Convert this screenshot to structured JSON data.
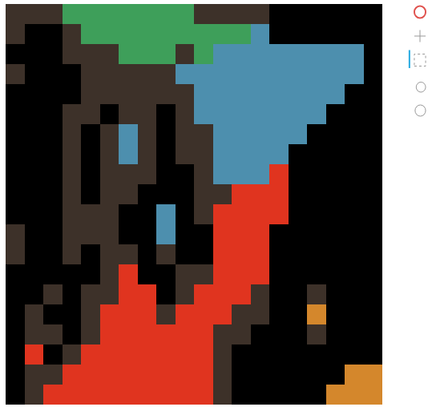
{
  "chart_data": {
    "type": "heatmap",
    "colors": [
      "#000000",
      "#e0341f",
      "#4d8fae",
      "#3e9f5a",
      "#d4872c",
      "#3d3129"
    ],
    "tick_labels": false,
    "grid": false,
    "cells": [
      [
        5,
        5,
        5,
        3,
        3,
        3,
        3,
        3,
        3,
        3,
        5,
        5,
        5,
        5,
        0,
        0,
        0,
        0,
        0,
        0
      ],
      [
        5,
        0,
        0,
        5,
        3,
        3,
        3,
        3,
        3,
        3,
        3,
        3,
        3,
        2,
        0,
        0,
        0,
        0,
        0,
        0
      ],
      [
        0,
        0,
        0,
        5,
        5,
        5,
        3,
        3,
        3,
        5,
        3,
        2,
        2,
        2,
        2,
        2,
        2,
        2,
        2,
        0
      ],
      [
        5,
        0,
        0,
        0,
        5,
        5,
        5,
        5,
        5,
        2,
        2,
        2,
        2,
        2,
        2,
        2,
        2,
        2,
        2,
        0
      ],
      [
        0,
        0,
        0,
        0,
        5,
        5,
        5,
        5,
        5,
        5,
        2,
        2,
        2,
        2,
        2,
        2,
        2,
        2,
        0,
        0
      ],
      [
        0,
        0,
        0,
        5,
        5,
        0,
        5,
        5,
        0,
        5,
        2,
        2,
        2,
        2,
        2,
        2,
        2,
        0,
        0,
        0
      ],
      [
        0,
        0,
        0,
        5,
        0,
        5,
        2,
        5,
        0,
        5,
        5,
        2,
        2,
        2,
        2,
        2,
        0,
        0,
        0,
        0
      ],
      [
        0,
        0,
        0,
        5,
        0,
        5,
        2,
        5,
        0,
        5,
        5,
        2,
        2,
        2,
        2,
        0,
        0,
        0,
        0,
        0
      ],
      [
        0,
        0,
        0,
        5,
        0,
        5,
        5,
        5,
        0,
        0,
        5,
        2,
        2,
        2,
        1,
        0,
        0,
        0,
        0,
        0
      ],
      [
        0,
        0,
        0,
        5,
        0,
        5,
        5,
        0,
        0,
        0,
        5,
        5,
        1,
        1,
        1,
        0,
        0,
        0,
        0,
        0
      ],
      [
        0,
        0,
        0,
        5,
        5,
        5,
        0,
        0,
        2,
        0,
        5,
        1,
        1,
        1,
        1,
        0,
        0,
        0,
        0,
        0
      ],
      [
        5,
        0,
        0,
        5,
        5,
        5,
        0,
        0,
        2,
        0,
        0,
        1,
        1,
        1,
        0,
        0,
        0,
        0,
        0,
        0
      ],
      [
        5,
        0,
        0,
        5,
        0,
        5,
        5,
        0,
        5,
        0,
        0,
        1,
        1,
        1,
        0,
        0,
        0,
        0,
        0,
        0
      ],
      [
        0,
        0,
        0,
        0,
        0,
        5,
        1,
        0,
        0,
        5,
        5,
        1,
        1,
        1,
        0,
        0,
        0,
        0,
        0,
        0
      ],
      [
        0,
        0,
        5,
        0,
        5,
        5,
        1,
        1,
        0,
        5,
        1,
        1,
        1,
        5,
        0,
        0,
        5,
        0,
        0,
        0
      ],
      [
        0,
        5,
        0,
        0,
        5,
        1,
        1,
        1,
        5,
        1,
        1,
        1,
        5,
        5,
        0,
        0,
        4,
        0,
        0,
        0
      ],
      [
        0,
        5,
        5,
        0,
        5,
        1,
        1,
        1,
        1,
        1,
        1,
        5,
        5,
        0,
        0,
        0,
        5,
        0,
        0,
        0
      ],
      [
        0,
        1,
        0,
        5,
        1,
        1,
        1,
        1,
        1,
        1,
        1,
        5,
        0,
        0,
        0,
        0,
        0,
        0,
        0,
        0
      ],
      [
        0,
        5,
        5,
        1,
        1,
        1,
        1,
        1,
        1,
        1,
        1,
        5,
        0,
        0,
        0,
        0,
        0,
        0,
        4,
        4
      ],
      [
        0,
        5,
        1,
        1,
        1,
        1,
        1,
        1,
        1,
        1,
        1,
        5,
        0,
        0,
        0,
        0,
        0,
        4,
        4,
        4
      ]
    ]
  }
}
